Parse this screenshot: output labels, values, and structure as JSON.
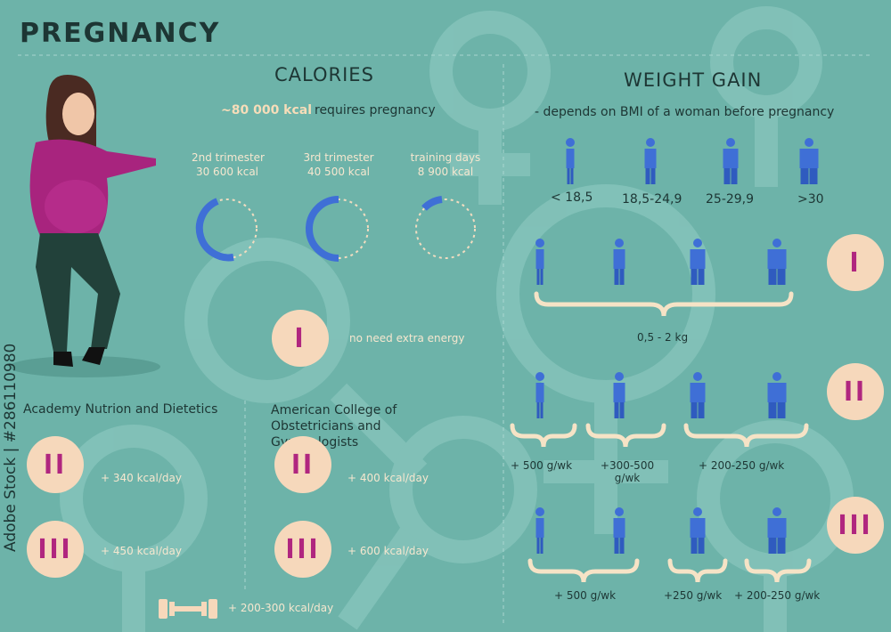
{
  "header": {
    "title": "PREGNANCY"
  },
  "calories": {
    "title": "CALORIES",
    "highlight": "~80 000 kcal",
    "subtitle": "requires pregnancy",
    "trimesters": [
      {
        "label": "2nd trimester",
        "value": "30 600 kcal"
      },
      {
        "label": "3rd trimester",
        "value": "40 500 kcal"
      },
      {
        "label": "training days",
        "value": "8 900 kcal"
      }
    ],
    "first_trimester": {
      "badge": "I",
      "note": "no need extra energy"
    },
    "sources": [
      {
        "name": "Academy Nutrion and Dietetics",
        "items": [
          {
            "badge": "II",
            "value": "+ 340 kcal/day"
          },
          {
            "badge": "III",
            "value": "+ 450 kcal/day"
          }
        ]
      },
      {
        "name": "American College of Obstetricians and Gynecologists",
        "items": [
          {
            "badge": "II",
            "value": "+ 400 kcal/day"
          },
          {
            "badge": "III",
            "value": "+ 600 kcal/day"
          }
        ]
      }
    ],
    "training": "+ 200-300 kcal/day"
  },
  "weight_gain": {
    "title": "WEIGHT GAIN",
    "subtitle": "- depends on BMI of a woman before pregnancy",
    "bmi": [
      "< 18,5",
      "18,5-24,9",
      "25-29,9",
      ">30"
    ],
    "trimesters": [
      {
        "badge": "I",
        "groups": [
          "0,5 - 2 kg"
        ]
      },
      {
        "badge": "II",
        "groups": [
          "+ 500 g/wk",
          "+300-500 g/wk",
          "+ 200-250 g/wk"
        ]
      },
      {
        "badge": "III",
        "groups": [
          "+ 500 g/wk",
          "+250 g/wk",
          "+ 200-250 g/wk"
        ]
      }
    ]
  },
  "watermark": "Adobe Stock | #286110980"
}
